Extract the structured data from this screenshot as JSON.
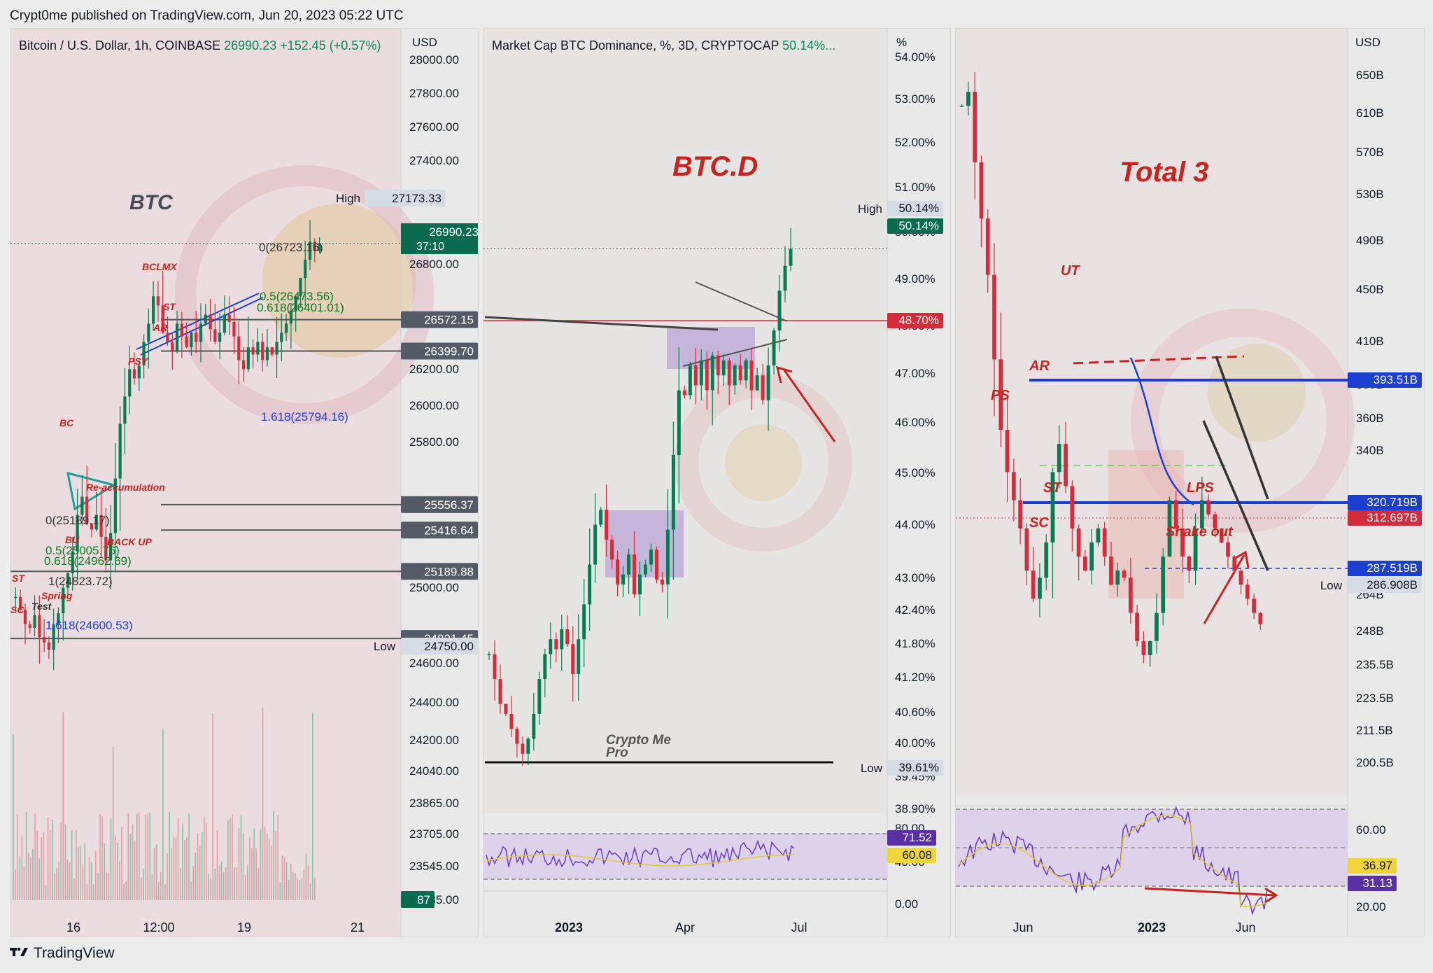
{
  "header": {
    "publisher": "Crypt0me published on TradingView.com, Jun 20, 2023 05:22 UTC"
  },
  "footer": {
    "brand": "TradingView",
    "logo_icon": "tradingview-logo-icon"
  },
  "colors": {
    "up": "#0a7a55",
    "down": "#d42c3a",
    "annotation_red": "#c8231f",
    "blue_line": "#1c3fd0",
    "rsi_purple": "#6a3cc4",
    "rsi_yellow": "#e6c837",
    "zone_purple": "#b49bd4"
  },
  "chart_data": [
    {
      "type": "candlestick",
      "symbol": "Bitcoin / U.S. Dollar, 1h, COINBASE",
      "last": "26990.23",
      "change": "+152.45 (+0.57%)",
      "currency": "USD",
      "watermark": "BTC",
      "y_ticks": [
        "28000.00",
        "27800.00",
        "27600.00",
        "27400.00",
        "26800.00",
        "26200.00",
        "26000.00",
        "25800.00",
        "25000.00",
        "24600.00",
        "24400.00",
        "24200.00",
        "24040.00",
        "23865.00",
        "23705.00",
        "23545.00",
        "23385.00"
      ],
      "x_ticks": [
        "16",
        "12:00",
        "19",
        "21"
      ],
      "price_boxes": [
        {
          "label": "High",
          "value": "27173.33"
        },
        {
          "value": "26990.23",
          "sub": "37:10"
        },
        {
          "value": "26572.15"
        },
        {
          "value": "26399.70"
        },
        {
          "value": "25556.37"
        },
        {
          "value": "25416.64"
        },
        {
          "value": "25189.88"
        },
        {
          "value": "24821.45"
        },
        {
          "label": "Low",
          "value": "24750.00"
        }
      ],
      "volume_badge": "87",
      "ylim": [
        23385,
        28000
      ],
      "fib_labels": [
        "0(26723.16)",
        "0.5(26473.56)",
        "0.618(26401.01)",
        "1.618(25794.16)",
        "0(25189.17)",
        "0.5(25005.76)",
        "0.618(24962.69)",
        "1(24823.72)",
        "1.618(24600.53)"
      ],
      "annotations": [
        "BCLMX",
        "ST",
        "AR",
        "PSY",
        "BC",
        "Re-accumulation",
        "BU",
        "BACK UP",
        "ST",
        "Spring",
        "Test",
        "SC"
      ],
      "close_path": [
        25050,
        24980,
        24900,
        24880,
        24950,
        24830,
        24800,
        24760,
        24900,
        24960,
        25100,
        25180,
        25300,
        25500,
        25600,
        25450,
        25420,
        25500,
        25380,
        25250,
        25400,
        25700,
        26000,
        26150,
        26300,
        26250,
        26320,
        26450,
        26550,
        26700,
        26650,
        26500,
        26450,
        26400,
        26550,
        26480,
        26420,
        26500,
        26450,
        26550,
        26600,
        26520,
        26450,
        26500,
        26600,
        26560,
        26480,
        26350,
        26300,
        26420,
        26380,
        26450,
        26350,
        26420,
        26380,
        26450,
        26500,
        26550,
        26620,
        26700,
        26800,
        26900,
        27000,
        26950,
        26990
      ]
    },
    {
      "type": "candlestick",
      "symbol": "Market Cap BTC Dominance, %, 3D, CRYPTOCAP",
      "last": "50.14%...",
      "currency": "%",
      "watermark": "BTC.D",
      "y_ticks": [
        "54.00%",
        "53.00%",
        "52.00%",
        "51.00%",
        "50.00%",
        "49.00%",
        "48.00%",
        "47.00%",
        "46.00%",
        "45.00%",
        "44.00%",
        "43.00%",
        "42.40%",
        "41.80%",
        "41.20%",
        "40.60%",
        "40.00%",
        "39.45%",
        "38.90%"
      ],
      "x_ticks": [
        "2023",
        "Apr",
        "Jul"
      ],
      "price_boxes": [
        {
          "label": "High",
          "value": "50.14%"
        },
        {
          "value": "50.14%"
        },
        {
          "value": "48.70%"
        },
        {
          "label": "Low",
          "value": "39.61%"
        }
      ],
      "ylim": [
        38.9,
        54.0
      ],
      "rsi": {
        "ticks": [
          "80.00",
          "40.00",
          "0.00"
        ],
        "rsi_value": "71.52",
        "ma_value": "60.08"
      },
      "annotations": [
        "Crypto Me",
        "Pro"
      ],
      "close_path": [
        42.0,
        41.5,
        41.0,
        40.8,
        40.5,
        40.2,
        40.0,
        40.3,
        40.8,
        41.5,
        42.0,
        42.3,
        42.1,
        42.5,
        42.2,
        41.6,
        42.3,
        43.0,
        43.8,
        44.6,
        44.9,
        44.3,
        43.9,
        43.4,
        43.6,
        44.0,
        43.2,
        43.6,
        43.8,
        44.1,
        43.5,
        43.4,
        44.5,
        46.0,
        47.3,
        47.2,
        47.8,
        47.4,
        47.9,
        47.3,
        48.0,
        47.6,
        47.9,
        47.4,
        47.8,
        47.5,
        47.9,
        47.3,
        47.6,
        47.1,
        47.8,
        48.5,
        49.3,
        49.8,
        50.14
      ]
    },
    {
      "type": "candlestick",
      "symbol": "",
      "currency": "USD",
      "watermark": "Total 3",
      "y_ticks": [
        "650B",
        "610B",
        "570B",
        "530B",
        "490B",
        "450B",
        "410B",
        "380B",
        "360B",
        "340B",
        "300B",
        "264B",
        "248B",
        "235.5B",
        "223.5B",
        "211.5B",
        "200.5B"
      ],
      "x_ticks": [
        "Jun",
        "2023",
        "Jun"
      ],
      "price_boxes": [
        {
          "value": "393.51B"
        },
        {
          "value": "320.719B"
        },
        {
          "value": "312.697B"
        },
        {
          "value": "287.519B"
        },
        {
          "label": "Low",
          "value": "286.908B"
        }
      ],
      "ylim": [
        200.5,
        700
      ],
      "rsi": {
        "ticks": [
          "60.00",
          "40.00",
          "20.00"
        ],
        "rsi_value": "36.97",
        "ma_value": "31.13"
      },
      "annotations": [
        "UT",
        "AR",
        "PS",
        "ST",
        "SC",
        "LPS",
        "Shake out"
      ],
      "close_path": [
        680,
        690,
        640,
        600,
        560,
        500,
        450,
        420,
        400,
        380,
        350,
        330,
        345,
        370,
        420,
        440,
        410,
        380,
        360,
        350,
        370,
        380,
        360,
        340,
        350,
        345,
        320,
        300,
        290,
        300,
        320,
        360,
        400,
        380,
        360,
        350,
        380,
        400,
        390,
        380,
        370,
        360,
        350,
        340,
        330,
        320,
        312
      ]
    }
  ]
}
